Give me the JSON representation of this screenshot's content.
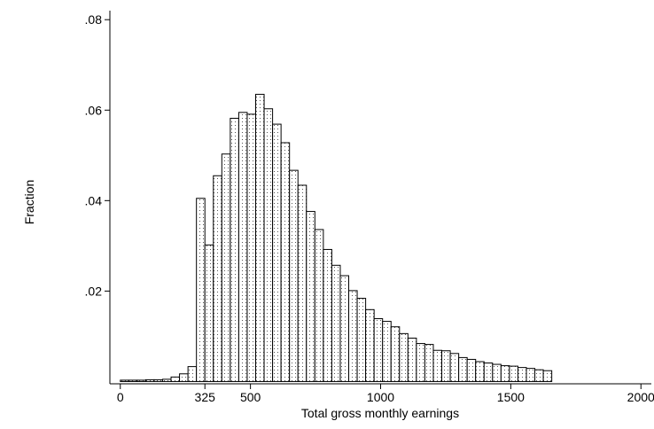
{
  "chart_data": {
    "type": "bar",
    "title": "",
    "xlabel": "Total gross monthly earnings",
    "ylabel": "Fraction",
    "xlim": [
      -40,
      2040
    ],
    "ylim": [
      -0.0005,
      0.082
    ],
    "grid": false,
    "legend": "none",
    "bin_width": 32.5,
    "bin_start": 0,
    "x_ticks": [
      {
        "value": 0,
        "label": "0"
      },
      {
        "value": 325,
        "label": "325"
      },
      {
        "value": 500,
        "label": "500"
      },
      {
        "value": 1000,
        "label": "1000"
      },
      {
        "value": 1500,
        "label": "1500"
      },
      {
        "value": 2000,
        "label": "2000"
      }
    ],
    "y_ticks": [
      {
        "value": 0.02,
        "label": ".02"
      },
      {
        "value": 0.04,
        "label": ".04"
      },
      {
        "value": 0.06,
        "label": ".06"
      },
      {
        "value": 0.08,
        "label": ".08"
      }
    ],
    "values": [
      0.0003,
      0.0003,
      0.0003,
      0.0004,
      0.0004,
      0.0005,
      0.001,
      0.0017,
      0.0033,
      0.0405,
      0.0302,
      0.0455,
      0.0503,
      0.0582,
      0.0595,
      0.0591,
      0.0635,
      0.0603,
      0.0569,
      0.0528,
      0.0467,
      0.0434,
      0.0376,
      0.0336,
      0.0292,
      0.0257,
      0.0234,
      0.0201,
      0.0184,
      0.0159,
      0.0139,
      0.0133,
      0.0121,
      0.0106,
      0.0096,
      0.0084,
      0.0082,
      0.0069,
      0.0068,
      0.0062,
      0.0053,
      0.0049,
      0.0044,
      0.0041,
      0.0038,
      0.0035,
      0.0034,
      0.0031,
      0.0029,
      0.0026,
      0.0024
    ],
    "colors": {
      "bar_fill": "#ffffff",
      "bar_stroke": "#000000",
      "stipple": "#555555",
      "axis": "#000000"
    }
  }
}
